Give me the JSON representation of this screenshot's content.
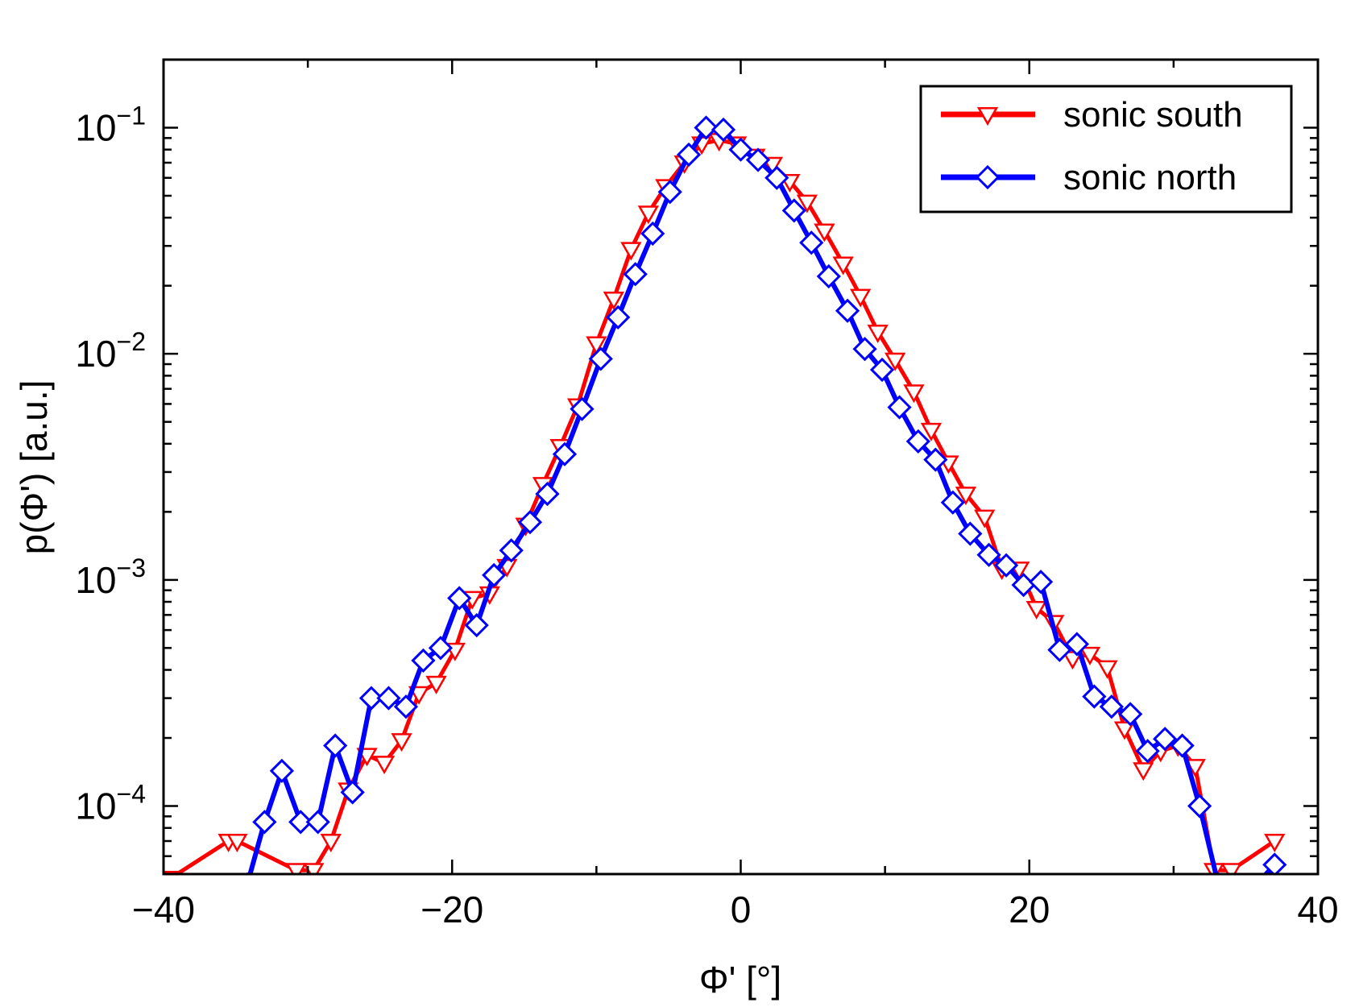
{
  "chart_data": {
    "type": "line",
    "xlabel": "Φ' [°]",
    "ylabel": "p(Φ') [a.u.]",
    "xlim": [
      -40,
      40
    ],
    "ylim": [
      5e-05,
      0.2
    ],
    "yscale": "log",
    "xticks": [
      -40,
      -20,
      0,
      20,
      40
    ],
    "xtick_labels": [
      "−40",
      "−20",
      "0",
      "20",
      "40"
    ],
    "yticks": [
      {
        "value": 0.0001,
        "base": "10",
        "exp": "−4"
      },
      {
        "value": 0.001,
        "base": "10",
        "exp": "−3"
      },
      {
        "value": 0.01,
        "base": "10",
        "exp": "−2"
      },
      {
        "value": 0.1,
        "base": "10",
        "exp": "−1"
      }
    ],
    "grid": false,
    "legend_position": "top-right",
    "series": [
      {
        "name": "sonic south",
        "color": "#ff0000",
        "marker": "triangle-down",
        "x": [
          -39.5,
          -35.5,
          -34.9,
          -30.8,
          -29.6,
          -28.4,
          -27.2,
          -25.9,
          -24.7,
          -23.5,
          -22.3,
          -21.1,
          -19.8,
          -18.6,
          -17.4,
          -16.2,
          -14.9,
          -13.7,
          -12.5,
          -11.3,
          -10.0,
          -8.8,
          -7.6,
          -6.4,
          -5.2,
          -3.9,
          -2.7,
          -1.5,
          -0.3,
          1.0,
          2.2,
          3.4,
          4.6,
          5.8,
          7.1,
          8.3,
          9.5,
          10.7,
          12.0,
          13.2,
          14.4,
          15.6,
          16.9,
          18.1,
          19.3,
          20.5,
          21.7,
          23.0,
          24.2,
          25.4,
          26.6,
          27.9,
          29.1,
          30.3,
          31.5,
          32.8,
          34.0,
          37.0
        ],
        "y": [
          4.8e-05,
          7e-05,
          7e-05,
          5.2e-05,
          5.2e-05,
          7e-05,
          0.000118,
          0.000168,
          0.000155,
          0.000195,
          0.000315,
          0.00035,
          0.00049,
          0.00083,
          0.00087,
          0.00115,
          0.00175,
          0.00265,
          0.0039,
          0.0059,
          0.0111,
          0.0175,
          0.029,
          0.042,
          0.055,
          0.07,
          0.085,
          0.088,
          0.085,
          0.075,
          0.069,
          0.058,
          0.047,
          0.035,
          0.025,
          0.018,
          0.0125,
          0.0094,
          0.0068,
          0.0046,
          0.0033,
          0.0024,
          0.0019,
          0.00112,
          0.00112,
          0.00075,
          0.00065,
          0.00045,
          0.00047,
          0.00041,
          0.00022,
          0.000145,
          0.000175,
          0.000185,
          0.00015,
          5.2e-05,
          5.2e-05,
          7e-05
        ]
      },
      {
        "name": "sonic north",
        "color": "#0000ff",
        "marker": "diamond",
        "x": [
          -34.2,
          -33.0,
          -31.8,
          -30.5,
          -29.3,
          -28.1,
          -26.9,
          -25.6,
          -24.4,
          -23.2,
          -22.0,
          -20.8,
          -19.5,
          -18.3,
          -17.1,
          -15.9,
          -14.6,
          -13.4,
          -12.2,
          -11.0,
          -9.7,
          -8.5,
          -7.3,
          -6.1,
          -4.9,
          -3.6,
          -2.4,
          -1.2,
          0.0,
          1.2,
          2.5,
          3.7,
          4.9,
          6.1,
          7.4,
          8.6,
          9.8,
          11.0,
          12.3,
          13.5,
          14.7,
          15.9,
          17.2,
          18.4,
          19.6,
          20.8,
          22.1,
          23.3,
          24.5,
          25.7,
          27.0,
          28.2,
          29.4,
          30.6,
          31.8,
          33.1,
          35.0,
          37.0
        ],
        "y": [
          4.5e-05,
          8.5e-05,
          0.000143,
          8.5e-05,
          8.5e-05,
          0.000185,
          0.000115,
          0.0003,
          0.0003,
          0.000275,
          0.00044,
          0.0005,
          0.00083,
          0.00063,
          0.00105,
          0.00135,
          0.0018,
          0.0024,
          0.0036,
          0.0057,
          0.0095,
          0.0145,
          0.0225,
          0.034,
          0.052,
          0.076,
          0.1,
          0.098,
          0.08,
          0.072,
          0.06,
          0.043,
          0.031,
          0.022,
          0.0155,
          0.0105,
          0.0085,
          0.0058,
          0.0041,
          0.0034,
          0.0022,
          0.0016,
          0.00129,
          0.00116,
          0.00095,
          0.00098,
          0.00049,
          0.00052,
          0.000305,
          0.000275,
          0.000255,
          0.000175,
          0.000198,
          0.000185,
          0.0001,
          4.5e-05,
          4e-05,
          5.5e-05
        ]
      }
    ]
  }
}
